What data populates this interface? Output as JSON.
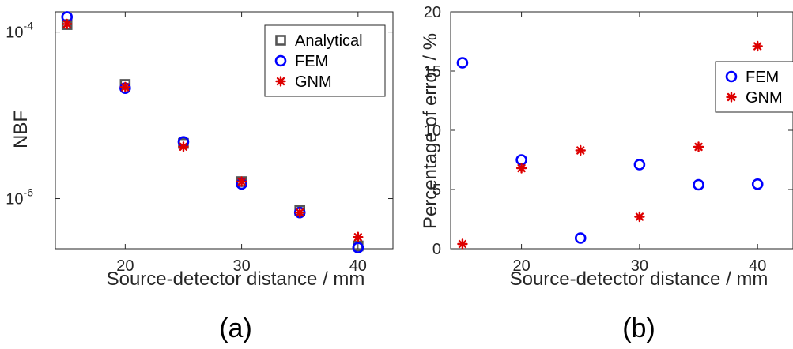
{
  "chart_data": [
    {
      "type": "scatter",
      "panel_label": "(a)",
      "xlabel": "Source-detector distance / mm",
      "ylabel": "NBF",
      "xlim": [
        14,
        43
      ],
      "ylim": [
        2.5e-07,
        0.000175
      ],
      "yscale": "log",
      "xticks": [
        20,
        30,
        40
      ],
      "yticks": [
        {
          "value": 1e-06,
          "base": "10",
          "exp": "-6"
        },
        {
          "value": 0.0001,
          "base": "10",
          "exp": "-4"
        }
      ],
      "legend_position": "top-right",
      "grid": false,
      "series": [
        {
          "name": "Analytical",
          "marker": "square",
          "color": "#555555",
          "x": [
            15,
            20,
            25,
            30,
            35,
            40
          ],
          "y": [
            0.000123,
            2.35e-05,
            4.6e-06,
            1.6e-06,
            7.2e-07,
            2.7e-07
          ]
        },
        {
          "name": "FEM",
          "marker": "circle",
          "color": "#0000ff",
          "x": [
            15,
            20,
            25,
            30,
            35,
            40
          ],
          "y": [
            0.000152,
            2.12e-05,
            4.8e-06,
            1.5e-06,
            6.8e-07,
            2.58e-07
          ]
        },
        {
          "name": "GNM",
          "marker": "asterisk",
          "color": "#dd0000",
          "x": [
            15,
            20,
            25,
            30,
            35,
            40
          ],
          "y": [
            0.000125,
            2.18e-05,
            4.2e-06,
            1.6e-06,
            6.8e-07,
            3.45e-07
          ]
        }
      ]
    },
    {
      "type": "scatter",
      "panel_label": "(b)",
      "xlabel": "Source-detector distance / mm",
      "ylabel": "Percentage of error / %",
      "xlim": [
        14,
        43
      ],
      "ylim": [
        0,
        20
      ],
      "xticks": [
        20,
        30,
        40
      ],
      "yticks": [
        0,
        5,
        10,
        15,
        20
      ],
      "legend_position": "top-right",
      "grid": false,
      "series": [
        {
          "name": "FEM",
          "marker": "circle",
          "color": "#0000ff",
          "x": [
            15,
            20,
            25,
            30,
            35,
            40
          ],
          "y": [
            15.7,
            7.5,
            0.9,
            7.1,
            5.4,
            5.45
          ]
        },
        {
          "name": "GNM",
          "marker": "asterisk",
          "color": "#dd0000",
          "x": [
            15,
            20,
            25,
            30,
            35,
            40
          ],
          "y": [
            0.4,
            6.8,
            8.3,
            2.7,
            8.6,
            17.1
          ]
        }
      ]
    }
  ]
}
